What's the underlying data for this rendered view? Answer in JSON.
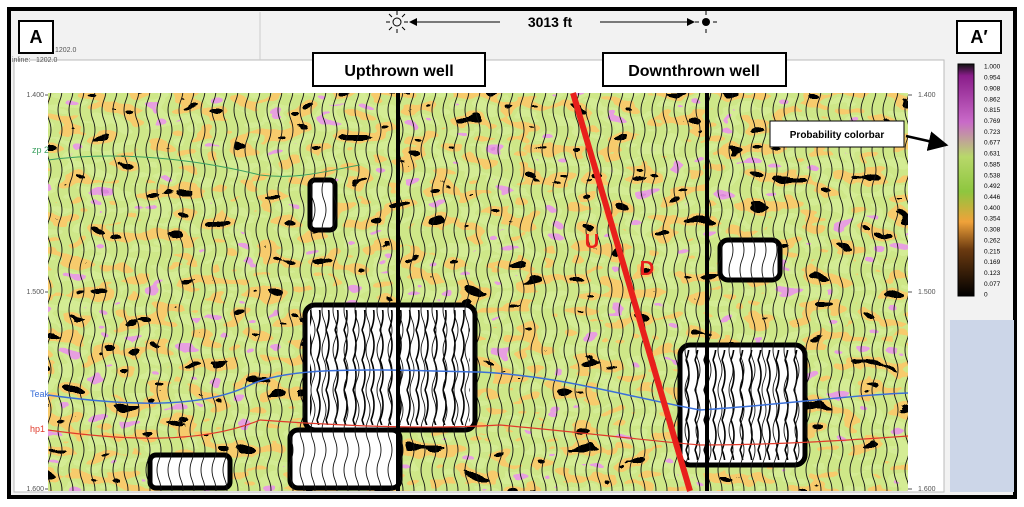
{
  "panel_labels": {
    "left": "A",
    "right": "A′"
  },
  "distance": "3013 ft",
  "header": {
    "inline_label": "inline:",
    "inline_value": "1202.0",
    "top_value": "1202.0"
  },
  "wells": {
    "upthrown": "Upthrown well",
    "downthrown": "Downthrown well"
  },
  "fault": {
    "up": "U",
    "down": "D"
  },
  "horizons": {
    "top": "zp 2",
    "middle": "Teak",
    "bottom": "hp1"
  },
  "time_axis_left": [
    "1.400",
    "1.500",
    "1.600"
  ],
  "time_axis_right": [
    "1.400",
    "1.500",
    "1.600"
  ],
  "colorbar": {
    "title": "Probability colorbar",
    "ticks": [
      "1.000",
      "0.954",
      "0.908",
      "0.862",
      "0.815",
      "0.769",
      "0.723",
      "0.677",
      "0.631",
      "0.585",
      "0.538",
      "0.492",
      "0.446",
      "0.400",
      "0.354",
      "0.308",
      "0.262",
      "0.215",
      "0.169",
      "0.123",
      "0.077",
      "0"
    ]
  }
}
